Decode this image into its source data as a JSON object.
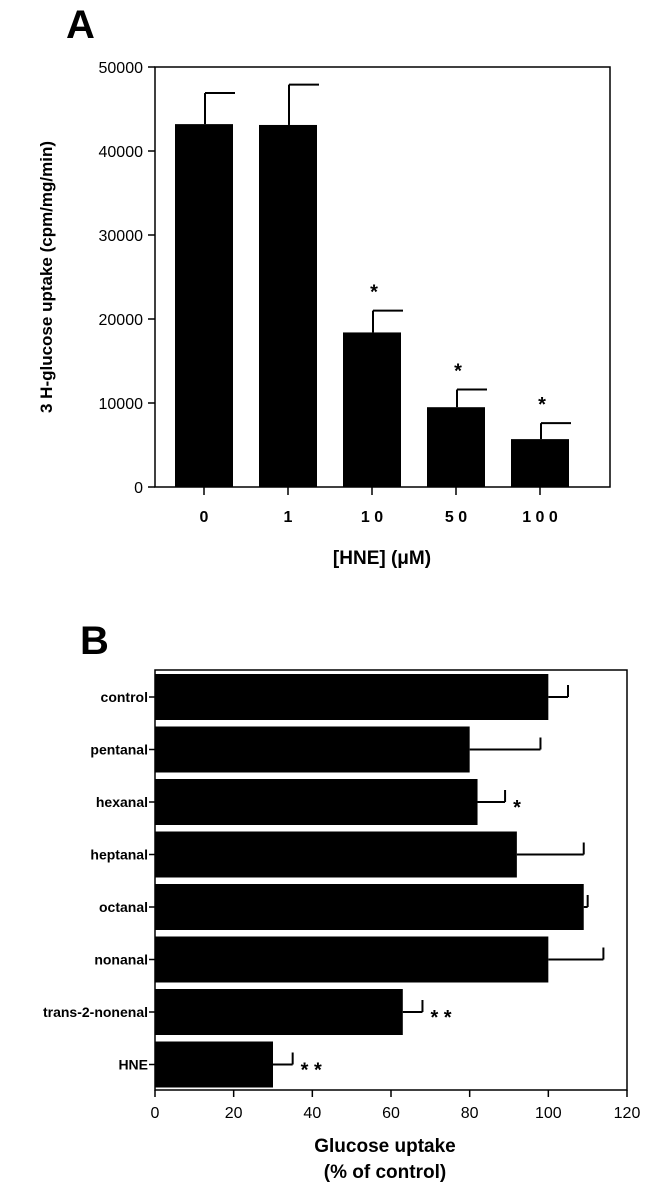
{
  "chart_data": [
    {
      "type": "bar",
      "panel": "A",
      "categories": [
        "0",
        "1",
        "1 0",
        "5 0",
        "1 0 0"
      ],
      "values": [
        43200,
        43100,
        18400,
        9500,
        5700
      ],
      "errors": [
        3700,
        4800,
        2600,
        2100,
        1900
      ],
      "annotations": [
        "",
        "",
        "*",
        "*",
        "*"
      ],
      "xlabel": "[HNE]  (μM)",
      "ylabel": "3 H-glucose  uptake  (cpm/mg/min)",
      "ylim": [
        0,
        50000
      ],
      "yticks": [
        "0",
        "10000",
        "20000",
        "30000",
        "40000",
        "50000"
      ],
      "grid": false,
      "bar_color": "#000000"
    },
    {
      "type": "bar",
      "orientation": "horizontal",
      "panel": "B",
      "categories": [
        "control",
        "pentanal",
        "hexanal",
        "heptanal",
        "octanal",
        "nonanal",
        "trans-2-nonenal",
        "HNE"
      ],
      "values": [
        100,
        80,
        82,
        92,
        109,
        100,
        63,
        30
      ],
      "errors": [
        5,
        18,
        7,
        17,
        1,
        14,
        5,
        5
      ],
      "annotations": [
        "",
        "",
        "*",
        "",
        "",
        "",
        "* *",
        "* *"
      ],
      "xlabel": "Glucose uptake",
      "xlabel2": "(% of control)",
      "xlim": [
        0,
        120
      ],
      "xticks": [
        "0",
        "20",
        "40",
        "60",
        "80",
        "100",
        "120"
      ],
      "grid": false,
      "bar_color": "#000000"
    }
  ]
}
